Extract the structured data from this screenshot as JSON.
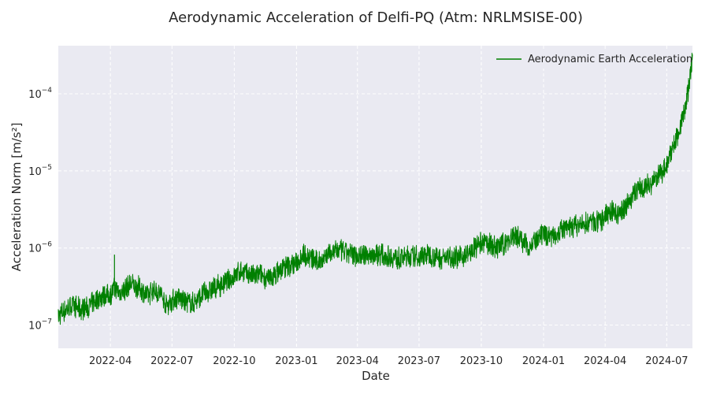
{
  "chart_data": {
    "type": "line",
    "title": "Aerodynamic Acceleration of Delfi-PQ (Atm: NRLMSISE-00)",
    "xlabel": "Date",
    "ylabel": "Acceleration Norm [m/s²]",
    "y_scale": "log",
    "xlim": [
      "2022-01-14",
      "2024-08-08"
    ],
    "ylim": [
      5e-08,
      0.00042
    ],
    "grid": true,
    "legend_position": "top-right",
    "x_ticks": [
      "2022-04",
      "2022-07",
      "2022-10",
      "2023-01",
      "2023-04",
      "2023-07",
      "2023-10",
      "2024-01",
      "2024-04",
      "2024-07"
    ],
    "y_ticks": [
      {
        "base": "10",
        "exp": "−7",
        "value": 1e-07
      },
      {
        "base": "10",
        "exp": "−6",
        "value": 1e-06
      },
      {
        "base": "10",
        "exp": "−5",
        "value": 1e-05
      },
      {
        "base": "10",
        "exp": "−4",
        "value": 0.0001
      }
    ],
    "series": [
      {
        "name": "Aerodynamic Earth Acceleration",
        "color": "#008000",
        "points": [
          [
            "2022-01-14",
            1.3e-07
          ],
          [
            "2022-01-25",
            1.6e-07
          ],
          [
            "2022-02-05",
            1.8e-07
          ],
          [
            "2022-02-15",
            1.6e-07
          ],
          [
            "2022-02-28",
            1.7e-07
          ],
          [
            "2022-03-10",
            2.1e-07
          ],
          [
            "2022-03-20",
            2.4e-07
          ],
          [
            "2022-04-01",
            2.5e-07
          ],
          [
            "2022-04-07",
            3e-07
          ],
          [
            "2022-04-15",
            2.6e-07
          ],
          [
            "2022-05-01",
            3.4e-07
          ],
          [
            "2022-05-15",
            3e-07
          ],
          [
            "2022-05-25",
            2.4e-07
          ],
          [
            "2022-06-05",
            2.9e-07
          ],
          [
            "2022-06-15",
            2.5e-07
          ],
          [
            "2022-06-22",
            1.8e-07
          ],
          [
            "2022-07-01",
            2.1e-07
          ],
          [
            "2022-07-10",
            2.3e-07
          ],
          [
            "2022-07-20",
            2e-07
          ],
          [
            "2022-08-01",
            1.9e-07
          ],
          [
            "2022-08-15",
            2.5e-07
          ],
          [
            "2022-09-01",
            3e-07
          ],
          [
            "2022-09-15",
            3.4e-07
          ],
          [
            "2022-10-01",
            4.2e-07
          ],
          [
            "2022-10-10",
            5e-07
          ],
          [
            "2022-10-20",
            4.6e-07
          ],
          [
            "2022-11-01",
            4.3e-07
          ],
          [
            "2022-11-10",
            4.6e-07
          ],
          [
            "2022-11-20",
            3.8e-07
          ],
          [
            "2022-12-01",
            4.6e-07
          ],
          [
            "2022-12-15",
            5.6e-07
          ],
          [
            "2023-01-01",
            6.4e-07
          ],
          [
            "2023-01-10",
            8.5e-07
          ],
          [
            "2023-01-20",
            7.6e-07
          ],
          [
            "2023-02-01",
            6.5e-07
          ],
          [
            "2023-02-15",
            8.2e-07
          ],
          [
            "2023-03-01",
            9.5e-07
          ],
          [
            "2023-03-15",
            8.6e-07
          ],
          [
            "2023-04-01",
            8.1e-07
          ],
          [
            "2023-04-15",
            7.9e-07
          ],
          [
            "2023-05-01",
            8.4e-07
          ],
          [
            "2023-05-15",
            7.8e-07
          ],
          [
            "2023-06-01",
            7.3e-07
          ],
          [
            "2023-06-15",
            7.8e-07
          ],
          [
            "2023-07-01",
            7.6e-07
          ],
          [
            "2023-07-15",
            8.3e-07
          ],
          [
            "2023-08-01",
            7.4e-07
          ],
          [
            "2023-08-15",
            7.7e-07
          ],
          [
            "2023-09-01",
            7.6e-07
          ],
          [
            "2023-09-15",
            8.8e-07
          ],
          [
            "2023-10-01",
            1.15e-06
          ],
          [
            "2023-10-10",
            1.15e-06
          ],
          [
            "2023-10-25",
            1e-06
          ],
          [
            "2023-11-10",
            1.25e-06
          ],
          [
            "2023-11-20",
            1.5e-06
          ],
          [
            "2023-12-01",
            1.25e-06
          ],
          [
            "2023-12-10",
            1.05e-06
          ],
          [
            "2023-12-20",
            1.2e-06
          ],
          [
            "2024-01-01",
            1.5e-06
          ],
          [
            "2024-01-15",
            1.45e-06
          ],
          [
            "2024-02-01",
            1.75e-06
          ],
          [
            "2024-02-15",
            1.9e-06
          ],
          [
            "2024-03-01",
            2e-06
          ],
          [
            "2024-03-10",
            2.2e-06
          ],
          [
            "2024-03-25",
            2.1e-06
          ],
          [
            "2024-04-01",
            2.7e-06
          ],
          [
            "2024-04-10",
            3.1e-06
          ],
          [
            "2024-04-20",
            2.6e-06
          ],
          [
            "2024-05-01",
            3.5e-06
          ],
          [
            "2024-05-10",
            4.5e-06
          ],
          [
            "2024-05-20",
            6e-06
          ],
          [
            "2024-06-01",
            6.4e-06
          ],
          [
            "2024-06-10",
            7e-06
          ],
          [
            "2024-06-20",
            8.8e-06
          ],
          [
            "2024-07-01",
            1.2e-05
          ],
          [
            "2024-07-10",
            2e-05
          ],
          [
            "2024-07-20",
            3.5e-05
          ],
          [
            "2024-07-28",
            6.5e-05
          ],
          [
            "2024-08-03",
            0.00013
          ],
          [
            "2024-08-08",
            0.00028
          ]
        ]
      }
    ]
  }
}
